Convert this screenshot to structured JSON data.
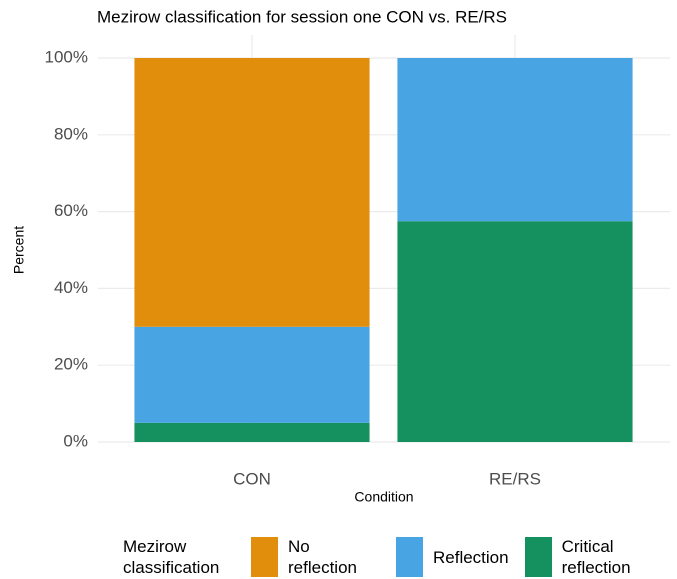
{
  "chart_data": {
    "type": "bar",
    "stacked": true,
    "title": "Mezirow classification for session one CON vs. RE/RS",
    "x_label": "Condition",
    "y_label": "Percent",
    "legend_title": "Mezirow classification",
    "legend": "bottom",
    "grid": true,
    "categories": [
      "CON",
      "RE/RS"
    ],
    "series": [
      {
        "name": "No reflection",
        "color": "#e08e0b",
        "values": [
          70,
          0
        ]
      },
      {
        "name": "Reflection",
        "color": "#48a4e2",
        "values": [
          25,
          42.5
        ]
      },
      {
        "name": "Critical reflection",
        "color": "#15905f",
        "values": [
          5,
          57.5
        ]
      }
    ],
    "ylim": [
      0,
      100
    ],
    "yticks": [
      {
        "value": 0,
        "label": "0%"
      },
      {
        "value": 20,
        "label": "20%"
      },
      {
        "value": 40,
        "label": "40%"
      },
      {
        "value": 60,
        "label": "60%"
      },
      {
        "value": 80,
        "label": "80%"
      },
      {
        "value": 100,
        "label": "100%"
      }
    ]
  }
}
